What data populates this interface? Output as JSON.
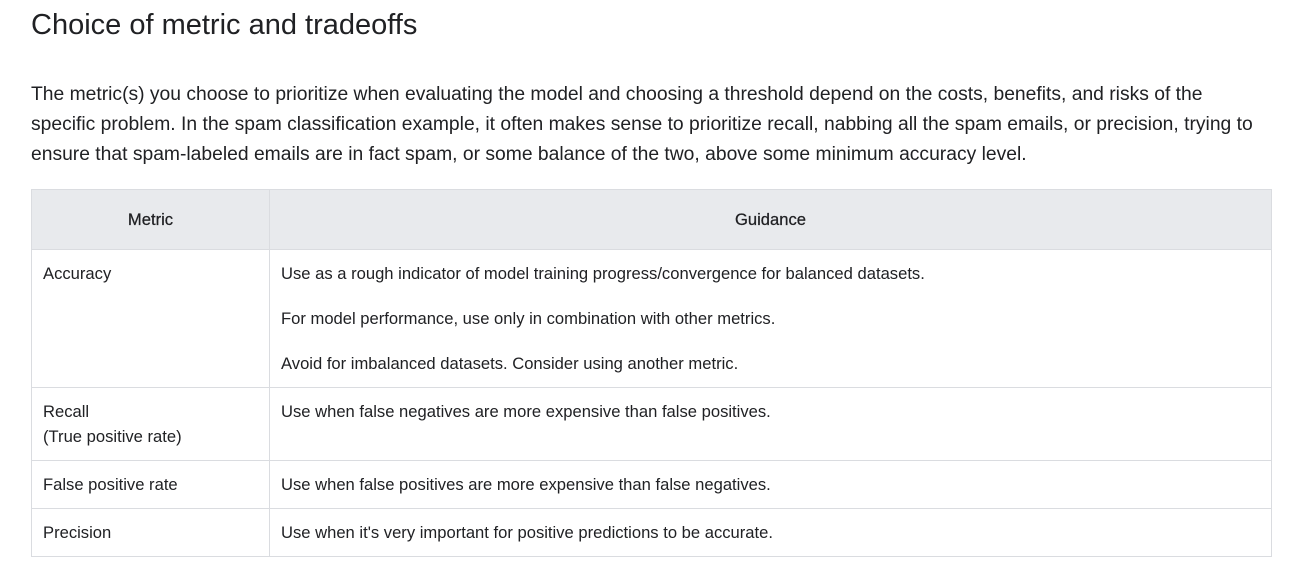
{
  "heading": "Choice of metric and tradeoffs",
  "intro": "The metric(s) you choose to prioritize when evaluating the model and choosing a threshold depend on the costs, benefits, and risks of the specific problem. In the spam classification example, it often makes sense to prioritize recall, nabbing all the spam emails, or precision, trying to ensure that spam-labeled emails are in fact spam, or some balance of the two, above some minimum accuracy level.",
  "table": {
    "headers": [
      "Metric",
      "Guidance"
    ],
    "rows": [
      {
        "metric": [
          "Accuracy"
        ],
        "guidance": [
          "Use as a rough indicator of model training progress/convergence for balanced datasets.",
          "For model performance, use only in combination with other metrics.",
          "Avoid for imbalanced datasets. Consider using another metric."
        ]
      },
      {
        "metric": [
          "Recall",
          "(True positive rate)"
        ],
        "guidance": [
          "Use when false negatives are more expensive than false positives."
        ]
      },
      {
        "metric": [
          "False positive rate"
        ],
        "guidance": [
          "Use when false positives are more expensive than false negatives."
        ]
      },
      {
        "metric": [
          "Precision"
        ],
        "guidance": [
          "Use when it's very important for positive predictions to be accurate."
        ]
      }
    ]
  }
}
